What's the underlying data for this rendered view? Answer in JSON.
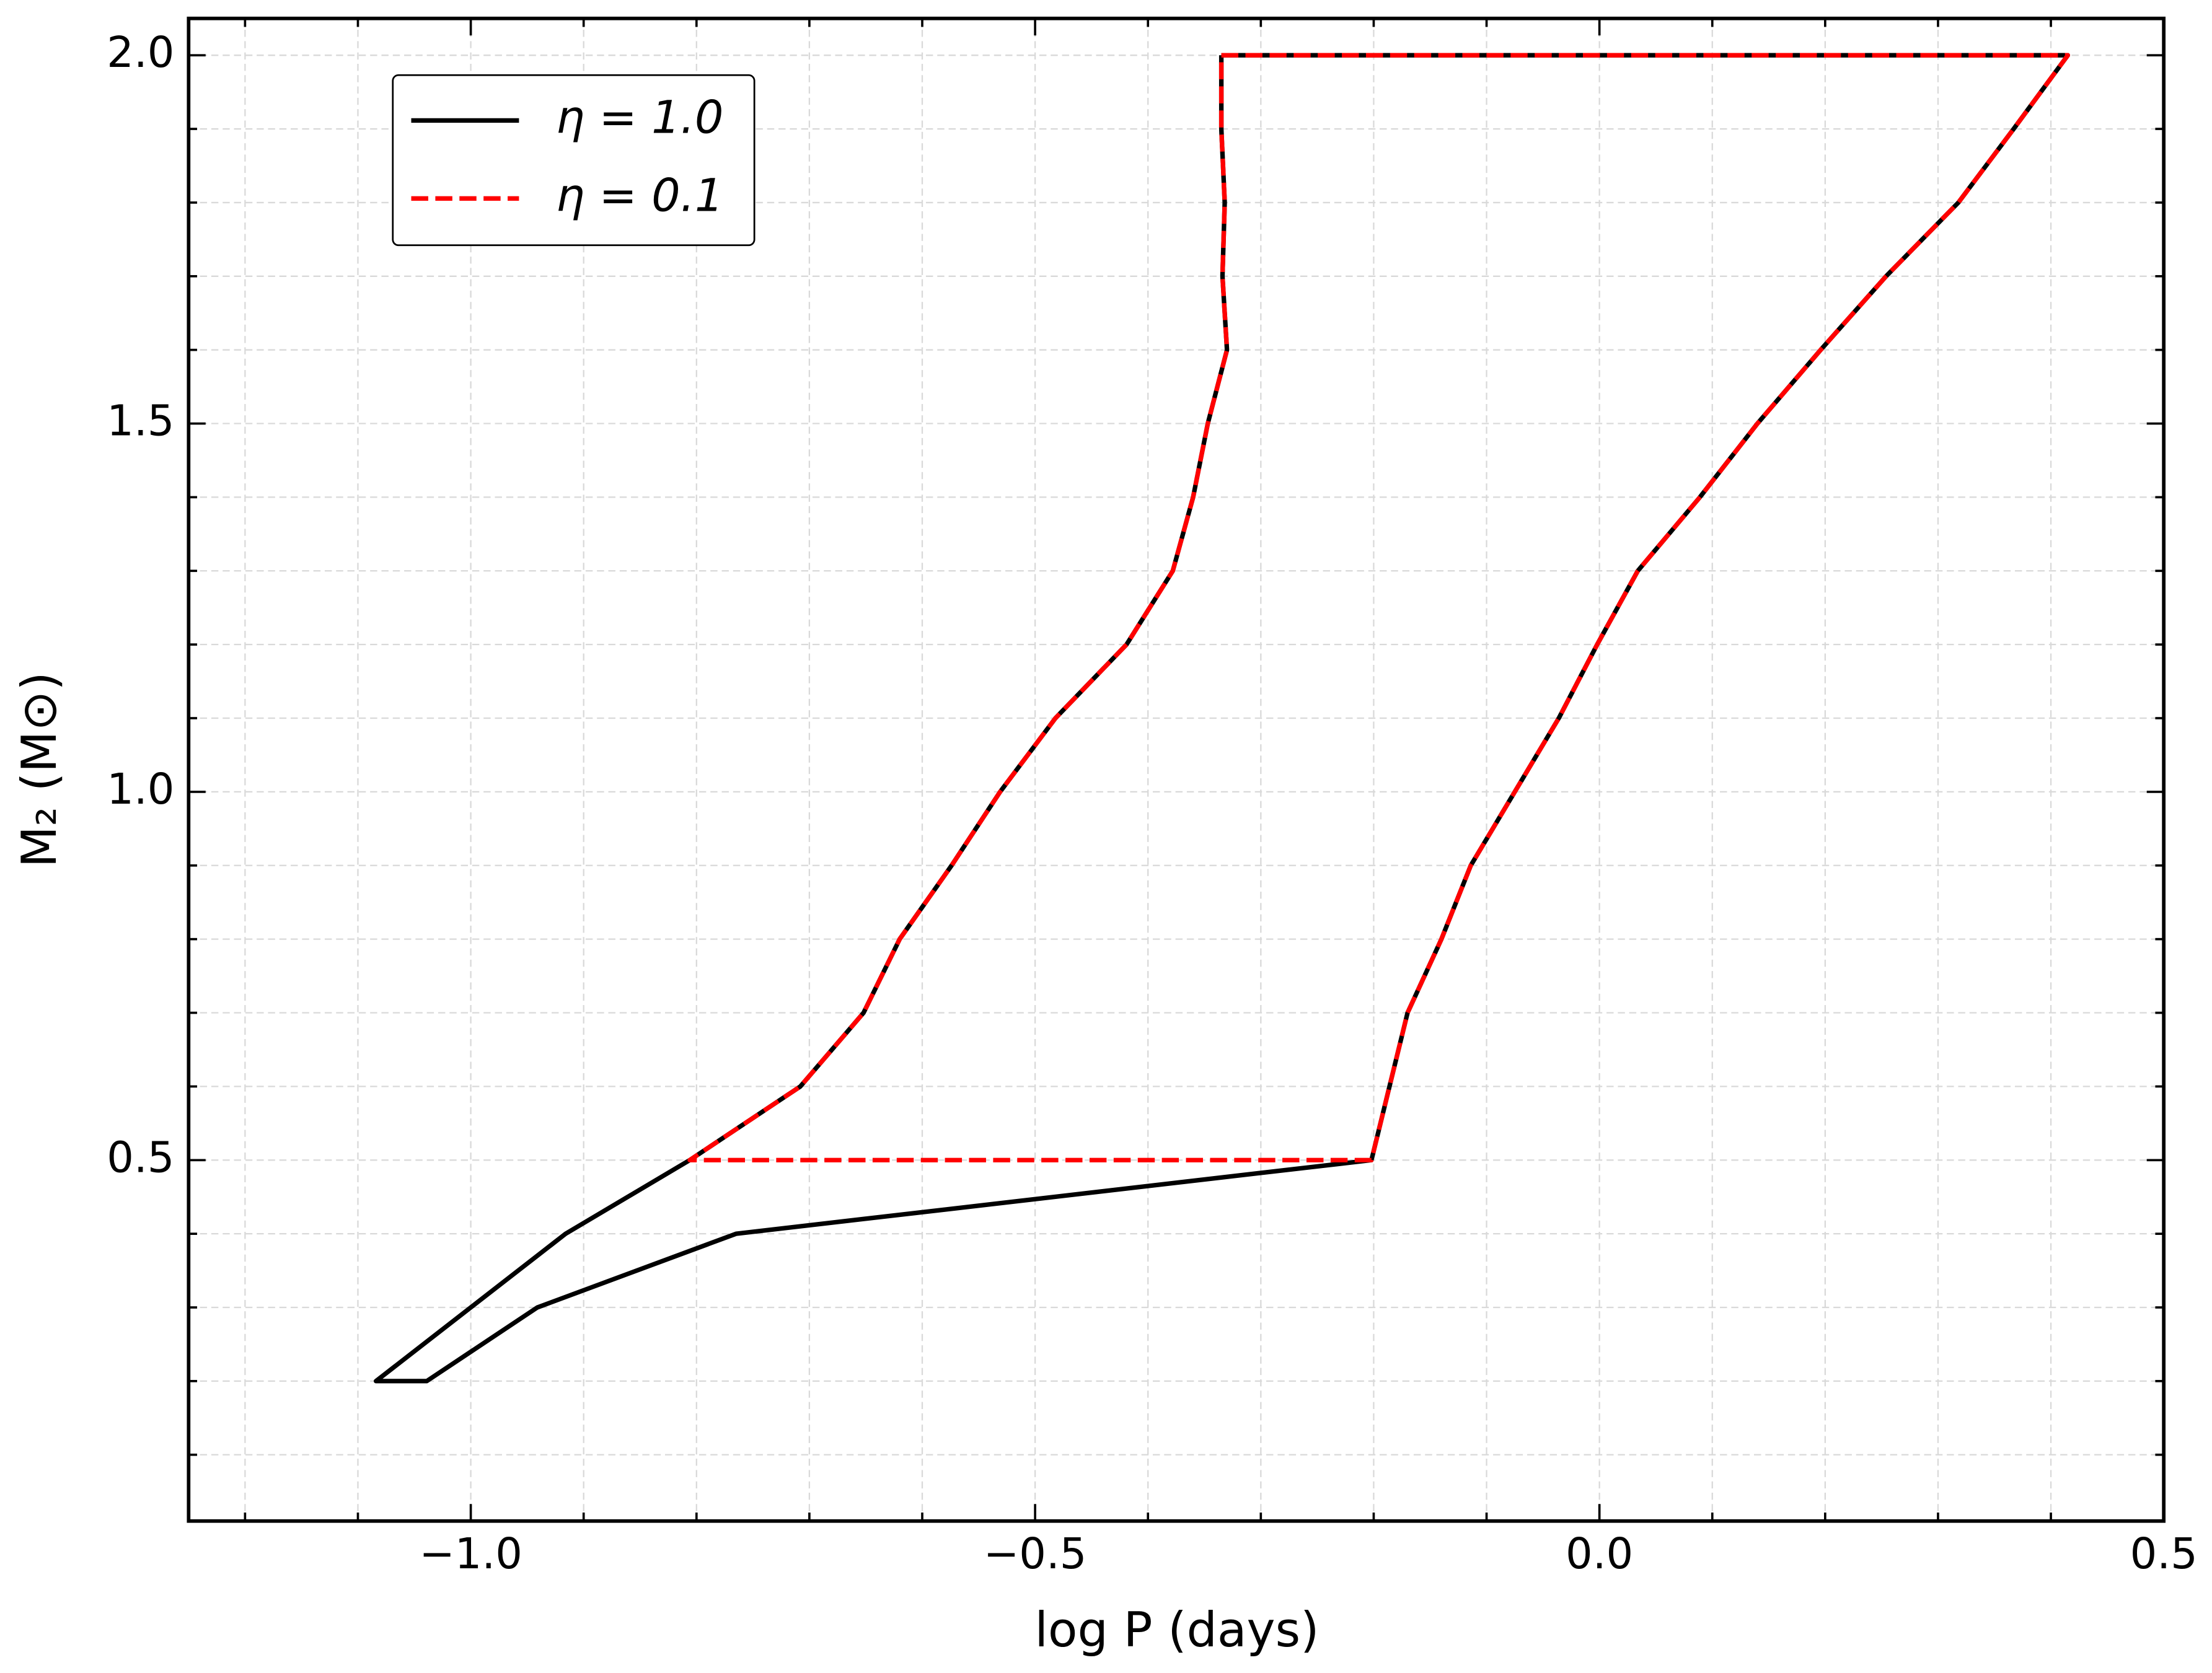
{
  "chart_data": {
    "type": "line",
    "xlabel": "log P (days)",
    "ylabel": "M₂ (M⊙)",
    "xlim": [
      -1.25,
      0.5
    ],
    "ylim": [
      0.01,
      2.05
    ],
    "xticks": [
      {
        "value": -1.0,
        "label": "−1.0"
      },
      {
        "value": -0.5,
        "label": "−0.5"
      },
      {
        "value": 0.0,
        "label": "0.0"
      },
      0.5
    ],
    "yticks": [
      0.5,
      {
        "value": 1.0,
        "label": "1.0"
      },
      1.5,
      {
        "value": 2.0,
        "label": "2.0"
      }
    ],
    "xminorticks": [
      -1.2,
      -1.1,
      -0.9,
      -0.8,
      -0.7,
      -0.6,
      -0.4,
      -0.3,
      -0.2,
      -0.1,
      0.1,
      0.2,
      0.3,
      0.4
    ],
    "yminorticks": [
      0.1,
      0.2,
      0.3,
      0.4,
      0.6,
      0.7,
      0.8,
      0.9,
      1.1,
      1.2,
      1.3,
      1.4,
      1.6,
      1.7,
      1.8,
      1.9
    ],
    "grid": true,
    "legend": "upper left",
    "series": [
      {
        "name": "η = 1.0",
        "color": "#000000",
        "linestyle": "solid",
        "x": [
          -0.335,
          0.415,
          0.367,
          0.318,
          0.254,
          0.196,
          0.14,
          0.089,
          0.034,
          -0.002,
          -0.036,
          -0.075,
          -0.114,
          -0.14,
          -0.17,
          -0.186,
          -0.202,
          -0.765,
          -0.941,
          -1.039,
          -1.084,
          -1.0,
          -0.916,
          -0.806,
          -0.708,
          -0.652,
          -0.62,
          -0.574,
          -0.531,
          -0.482,
          -0.419,
          -0.378,
          -0.36,
          -0.347,
          -0.33,
          -0.334,
          -0.332,
          -0.335,
          -0.335
        ],
        "values": [
          2.0,
          2.0,
          1.9,
          1.8,
          1.7,
          1.6,
          1.5,
          1.4,
          1.3,
          1.2,
          1.1,
          1.0,
          0.9,
          0.8,
          0.7,
          0.6,
          0.5,
          0.4,
          0.3,
          0.2,
          0.2,
          0.3,
          0.4,
          0.5,
          0.6,
          0.7,
          0.8,
          0.9,
          1.0,
          1.1,
          1.2,
          1.3,
          1.4,
          1.5,
          1.6,
          1.7,
          1.8,
          1.9,
          2.0
        ]
      },
      {
        "name": "η = 0.1",
        "color": "#ff0000",
        "linestyle": "dashed",
        "x": [
          -0.335,
          0.415,
          0.367,
          0.318,
          0.254,
          0.196,
          0.14,
          0.089,
          0.034,
          -0.002,
          -0.036,
          -0.075,
          -0.114,
          -0.14,
          -0.17,
          -0.186,
          -0.202,
          -0.806,
          -0.708,
          -0.652,
          -0.62,
          -0.574,
          -0.531,
          -0.482,
          -0.419,
          -0.378,
          -0.36,
          -0.347,
          -0.33,
          -0.334,
          -0.332,
          -0.335,
          -0.335
        ],
        "values": [
          2.0,
          2.0,
          1.9,
          1.8,
          1.7,
          1.6,
          1.5,
          1.4,
          1.3,
          1.2,
          1.1,
          1.0,
          0.9,
          0.8,
          0.7,
          0.6,
          0.5,
          0.5,
          0.6,
          0.7,
          0.8,
          0.9,
          1.0,
          1.1,
          1.2,
          1.3,
          1.4,
          1.5,
          1.6,
          1.7,
          1.8,
          1.9,
          2.0
        ]
      }
    ]
  }
}
